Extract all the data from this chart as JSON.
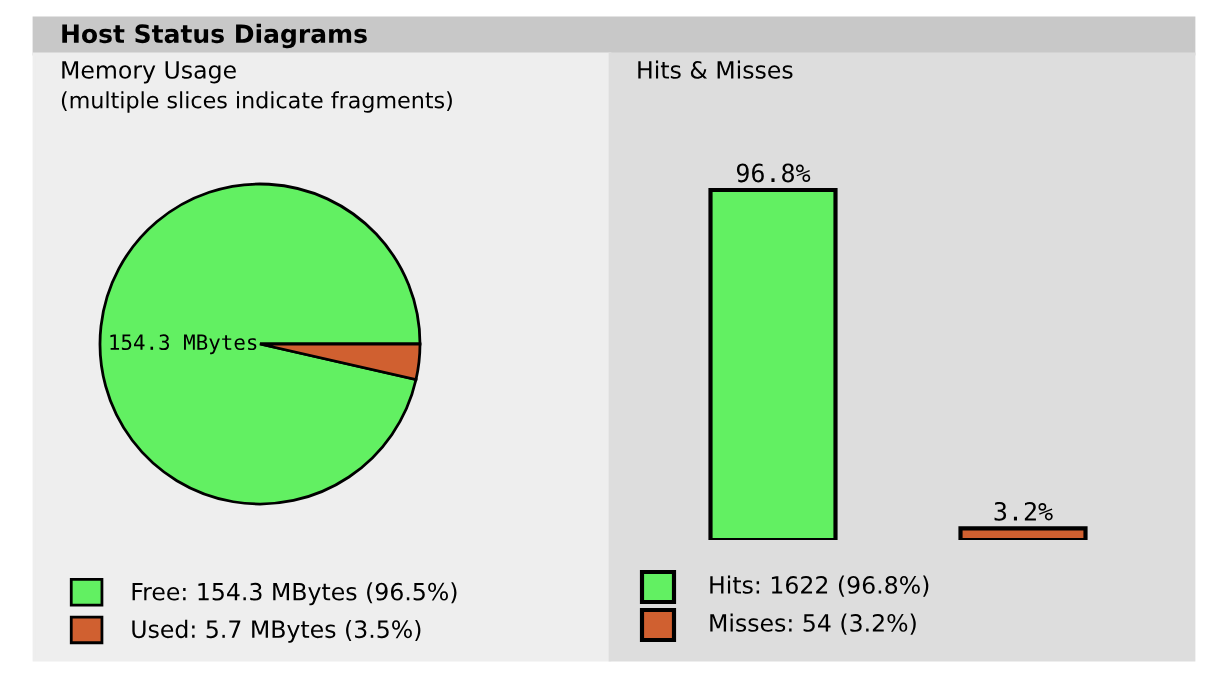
{
  "chart_data": [
    {
      "type": "pie",
      "title": "Memory Usage",
      "subtitle": "(multiple slices indicate fragments)",
      "categories": [
        "Free: 154.3 MBytes (96.5%)",
        "Used: 5.7 MBytes (3.5%)"
      ],
      "values": [
        154.3,
        5.7
      ],
      "colors": [
        "#62f062",
        "#d06030"
      ],
      "annotations": [
        "Host Status Diagrams",
        "154.3 MBytes"
      ],
      "legend": "bottom"
    },
    {
      "type": "bar",
      "title": "Hits & Misses",
      "categories": [
        null,
        null
      ],
      "values": [
        96.8,
        3.2
      ],
      "colors": [
        "#62f062",
        "#d06030"
      ],
      "value_labels": [
        "96.8%",
        "3.2%"
      ],
      "annotations": [
        "Hits: 1622 (96.8%)",
        "Misses: 54 (3.2%)"
      ]
    }
  ]
}
